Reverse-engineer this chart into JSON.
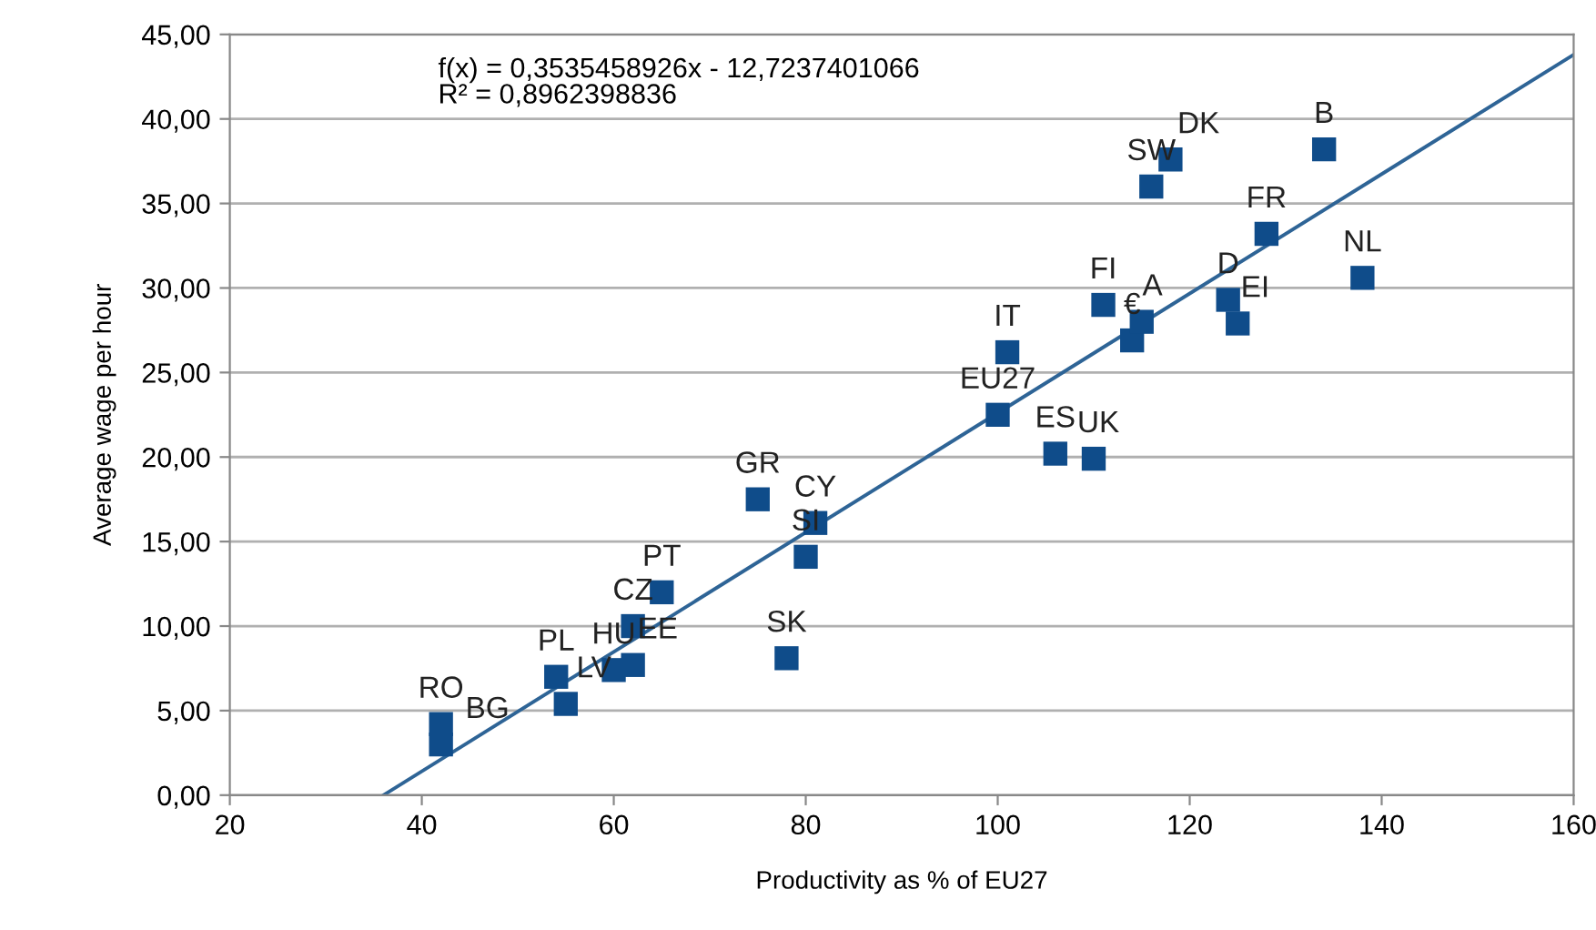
{
  "chart_data": {
    "type": "scatter",
    "xlabel": "Productivity as % of EU27",
    "ylabel": "Average wage per hour",
    "xlim": [
      20,
      160
    ],
    "xticks": [
      20,
      40,
      60,
      80,
      100,
      120,
      140,
      160
    ],
    "ylim": [
      0,
      45
    ],
    "yticks": [
      {
        "value": 0,
        "label": "0,00"
      },
      {
        "value": 5,
        "label": "5,00"
      },
      {
        "value": 10,
        "label": "10,00"
      },
      {
        "value": 15,
        "label": "15,00"
      },
      {
        "value": 20,
        "label": "20,00"
      },
      {
        "value": 25,
        "label": "25,00"
      },
      {
        "value": 30,
        "label": "30,00"
      },
      {
        "value": 35,
        "label": "35,00"
      },
      {
        "value": 40,
        "label": "40,00"
      },
      {
        "value": 45,
        "label": "45,00"
      }
    ],
    "grid": "y",
    "series": [
      {
        "marker": "square",
        "color": "#0f4c8a",
        "x": [
          42,
          42,
          54,
          55,
          60,
          62,
          62,
          65,
          75,
          80,
          81,
          78,
          100,
          101,
          106,
          110,
          111,
          114,
          115,
          116,
          118,
          124,
          125,
          128,
          134,
          138
        ],
        "values": [
          4.2,
          3.0,
          7.0,
          5.4,
          7.4,
          7.7,
          10.0,
          12.0,
          17.5,
          14.1,
          16.1,
          8.1,
          22.5,
          26.2,
          20.2,
          19.9,
          29.0,
          26.9,
          28.0,
          36.0,
          37.6,
          29.3,
          27.9,
          33.2,
          38.2,
          30.6
        ]
      },
      {
        "type": "line",
        "color": "#2e6496",
        "x": [
          36,
          160
        ],
        "values": [
          0,
          43.8
        ]
      }
    ],
    "annotations": [
      {
        "text": "RO",
        "x": 42,
        "y": 4.2
      },
      {
        "text": "BG",
        "x": 42,
        "y": 3.0
      },
      {
        "text": "PL",
        "x": 54,
        "y": 7.0
      },
      {
        "text": "LV",
        "x": 55,
        "y": 5.4
      },
      {
        "text": "HU",
        "x": 60,
        "y": 7.4
      },
      {
        "text": "EE",
        "x": 62,
        "y": 7.7
      },
      {
        "text": "CZ",
        "x": 62,
        "y": 10.0
      },
      {
        "text": "PT",
        "x": 65,
        "y": 12.0
      },
      {
        "text": "GR",
        "x": 75,
        "y": 17.5
      },
      {
        "text": "SI",
        "x": 80,
        "y": 14.1
      },
      {
        "text": "CY",
        "x": 81,
        "y": 16.1
      },
      {
        "text": "SK",
        "x": 78,
        "y": 8.1
      },
      {
        "text": "EU27",
        "x": 100,
        "y": 22.5
      },
      {
        "text": "IT",
        "x": 101,
        "y": 26.2
      },
      {
        "text": "ES",
        "x": 106,
        "y": 20.2
      },
      {
        "text": "UK",
        "x": 110,
        "y": 19.9
      },
      {
        "text": "FI",
        "x": 111,
        "y": 29.0
      },
      {
        "text": "€",
        "x": 114,
        "y": 26.9
      },
      {
        "text": "A",
        "x": 115,
        "y": 28.0
      },
      {
        "text": "SW",
        "x": 116,
        "y": 36.0
      },
      {
        "text": "DK",
        "x": 118,
        "y": 37.6
      },
      {
        "text": "D",
        "x": 124,
        "y": 29.3
      },
      {
        "text": "EI",
        "x": 125,
        "y": 27.9
      },
      {
        "text": "FR",
        "x": 128,
        "y": 33.2
      },
      {
        "text": "B",
        "x": 134,
        "y": 38.2
      },
      {
        "text": "NL",
        "x": 138,
        "y": 30.6
      },
      "f(x) = 0,3535458926x - 12,7237401066\nR² = 0,8962398836"
    ]
  }
}
